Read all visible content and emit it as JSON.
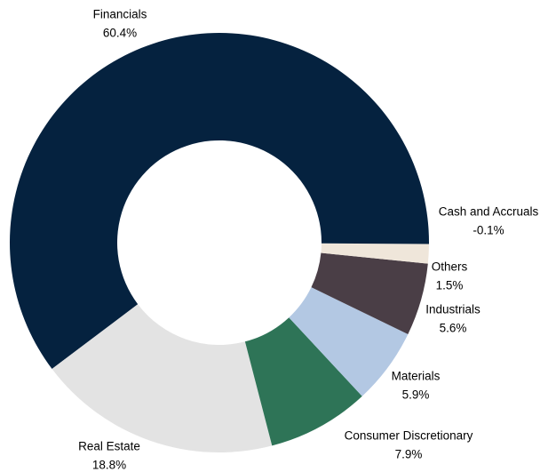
{
  "chart_data": {
    "type": "donut",
    "categories": [
      "Financials",
      "Real Estate",
      "Consumer Discretionary",
      "Materials",
      "Industrials",
      "Others",
      "Cash and Accruals"
    ],
    "values": [
      60.4,
      18.8,
      7.9,
      5.9,
      5.6,
      1.5,
      -0.1
    ],
    "value_labels": [
      "60.4%",
      "18.8%",
      "7.9%",
      "5.9%",
      "5.6%",
      "1.5%",
      "-0.1%"
    ],
    "colors": [
      "#05223f",
      "#e3e3e3",
      "#2e7457",
      "#b3c8e3",
      "#4a3e46",
      "#efe6da",
      "#05223f"
    ]
  }
}
